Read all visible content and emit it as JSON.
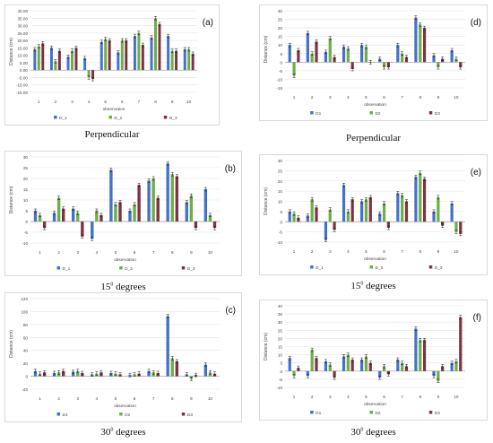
{
  "colors": {
    "s1": "#4472c4",
    "s2": "#70ad47",
    "s3": "#7b3444",
    "grid": "#e3e3e3",
    "axis": "#9a9a9a",
    "text": "#444444"
  },
  "captions": {
    "perp_left": "Perpendicular",
    "perp_right": "Perpendicular",
    "deg15_left": "15",
    "deg15_right": "15",
    "deg30_left": "30",
    "deg30_right": "30",
    "deg_sup": "0",
    "deg_word": " degrees"
  },
  "chart_data": [
    {
      "id": "a",
      "type": "bar",
      "panel_label": "(a)",
      "ylabel": "Distance (cm)",
      "xlabel": "observation",
      "ylim": [
        -15,
        40
      ],
      "ytick_step": 5,
      "ytick_decimals": 2,
      "grid": true,
      "legend": "bottom",
      "categories": [
        "1",
        "2",
        "3",
        "4",
        "5",
        "6",
        "7",
        "8",
        "9",
        "10"
      ],
      "series": [
        {
          "name": "D_1",
          "values": [
            14,
            15,
            9,
            8,
            19,
            12,
            23,
            22,
            23,
            14
          ]
        },
        {
          "name": "D_2",
          "values": [
            16,
            6,
            13,
            -5,
            21,
            20,
            25,
            35,
            13,
            14
          ]
        },
        {
          "name": "D_3",
          "values": [
            18,
            13,
            15,
            -6,
            20,
            20,
            17,
            31,
            13,
            11
          ]
        }
      ]
    },
    {
      "id": "d",
      "type": "bar",
      "panel_label": "(d)",
      "ylabel": "Distance (cm)",
      "xlabel": "observation",
      "ylim": [
        -15,
        30
      ],
      "ytick_step": 5,
      "ytick_decimals": 0,
      "grid": true,
      "legend": "bottom",
      "categories": [
        "1",
        "2",
        "3",
        "4",
        "5",
        "6",
        "7",
        "8",
        "9",
        "10"
      ],
      "series": [
        {
          "name": "D1",
          "values": [
            10,
            17,
            6,
            9,
            10,
            2,
            10,
            26,
            4,
            7
          ]
        },
        {
          "name": "D2",
          "values": [
            -8,
            5,
            14,
            8,
            9,
            -3,
            5,
            22,
            -3,
            2
          ]
        },
        {
          "name": "D3",
          "values": [
            7,
            12,
            3,
            -4,
            0,
            -3,
            3,
            20,
            2,
            -3
          ]
        }
      ]
    },
    {
      "id": "b",
      "type": "bar",
      "panel_label": "(b)",
      "ylabel": "Distance (cm)",
      "xlabel": "observation",
      "ylim": [
        -10,
        30
      ],
      "ytick_step": 5,
      "ytick_decimals": 0,
      "grid": true,
      "legend": "bottom",
      "categories": [
        "1",
        "2",
        "3",
        "4",
        "5",
        "6",
        "7",
        "8",
        "9",
        "10"
      ],
      "series": [
        {
          "name": "D_1",
          "values": [
            5,
            4,
            6,
            -8,
            24,
            5,
            19,
            27,
            9,
            15
          ]
        },
        {
          "name": "D_2",
          "values": [
            3,
            11,
            4,
            5,
            8,
            8,
            20,
            22,
            12,
            3
          ]
        },
        {
          "name": "D_3",
          "values": [
            -3,
            6,
            -7,
            3,
            9,
            17,
            11,
            21,
            -3,
            -3
          ]
        }
      ]
    },
    {
      "id": "e",
      "type": "bar",
      "panel_label": "(e)",
      "ylabel": "Distance (cm)",
      "xlabel": "observation",
      "ylim": [
        -10,
        30
      ],
      "ytick_step": 5,
      "ytick_decimals": 0,
      "grid": true,
      "legend": "bottom",
      "categories": [
        "1",
        "2",
        "3",
        "4",
        "5",
        "6",
        "7",
        "8",
        "9",
        "10"
      ],
      "series": [
        {
          "name": "D_1",
          "values": [
            5,
            3,
            -9,
            18,
            10,
            4,
            14,
            22,
            5,
            9
          ]
        },
        {
          "name": "D_2",
          "values": [
            4,
            11,
            6,
            5,
            11,
            9,
            13,
            24,
            12,
            -5
          ]
        },
        {
          "name": "D_3",
          "values": [
            2,
            7,
            -4,
            11,
            12,
            -3,
            10,
            21,
            -2,
            -6
          ]
        }
      ]
    },
    {
      "id": "c",
      "type": "bar",
      "panel_label": "(c)",
      "ylabel": "Distance (cm)",
      "xlabel": "observation",
      "ylim": [
        -20,
        120
      ],
      "ytick_step": 20,
      "ytick_decimals": 0,
      "grid": true,
      "legend": "bottom",
      "categories": [
        "1",
        "2",
        "3",
        "4",
        "5",
        "6",
        "7",
        "8",
        "9",
        "10"
      ],
      "series": [
        {
          "name": "D1",
          "values": [
            8,
            5,
            7,
            3,
            5,
            2,
            8,
            93,
            3,
            18
          ]
        },
        {
          "name": "D2",
          "values": [
            4,
            6,
            8,
            4,
            4,
            3,
            6,
            28,
            -4,
            6
          ]
        },
        {
          "name": "D3",
          "values": [
            6,
            8,
            5,
            6,
            3,
            4,
            5,
            23,
            2,
            4
          ]
        }
      ]
    },
    {
      "id": "f",
      "type": "bar",
      "panel_label": "(f)",
      "ylabel": "Distance (cm)",
      "xlabel": "observation",
      "ylim": [
        -10,
        40
      ],
      "ytick_step": 5,
      "ytick_decimals": 0,
      "grid": true,
      "legend": "bottom",
      "categories": [
        "1",
        "2",
        "3",
        "4",
        "5",
        "6",
        "7",
        "8",
        "9",
        "10"
      ],
      "series": [
        {
          "name": "D1",
          "values": [
            8,
            -3,
            6,
            9,
            7,
            -4,
            7,
            26,
            -3,
            5
          ]
        },
        {
          "name": "D2",
          "values": [
            -3,
            13,
            4,
            10,
            9,
            3,
            5,
            19,
            -6,
            6
          ]
        },
        {
          "name": "D3",
          "values": [
            2,
            8,
            -4,
            7,
            5,
            -2,
            3,
            19,
            3,
            33
          ]
        }
      ]
    }
  ]
}
